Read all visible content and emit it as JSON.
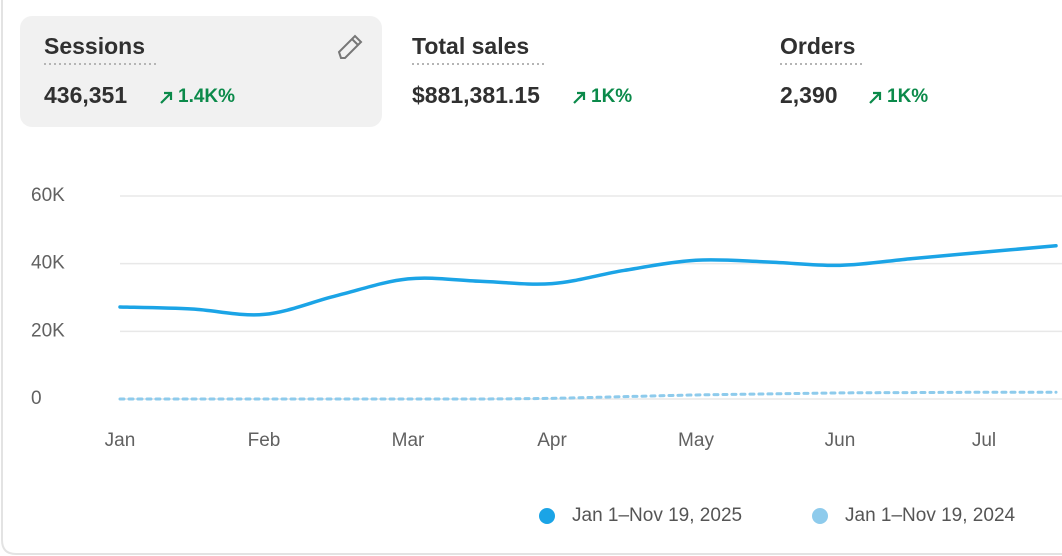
{
  "metrics": [
    {
      "label": "Sessions",
      "value": "436,351",
      "change": "1.4K%"
    },
    {
      "label": "Total sales",
      "value": "$881,381.15",
      "change": "1K%"
    },
    {
      "label": "Orders",
      "value": "2,390",
      "change": "1K%"
    }
  ],
  "chart_data": {
    "type": "line",
    "categories": [
      "Jan",
      null,
      "Feb",
      null,
      "Mar",
      null,
      "Apr",
      null,
      "May",
      null,
      "Jun",
      null,
      "Jul",
      null
    ],
    "series": [
      {
        "name": "Jan 1–Nov 19, 2025",
        "color": "#1ba4e6",
        "values": [
          27200,
          26600,
          25000,
          30500,
          35500,
          34800,
          34100,
          38000,
          41000,
          40500,
          39500,
          41500,
          43400,
          45300
        ]
      },
      {
        "name": "Jan 1–Nov 19, 2024",
        "color": "#8ecbec",
        "dashed": true,
        "values": [
          0,
          0,
          0,
          0,
          0,
          0,
          200,
          700,
          1200,
          1500,
          1800,
          1900,
          2000,
          2000
        ]
      }
    ],
    "ylim": [
      0,
      60000
    ],
    "yticks": [
      0,
      {
        "value": 20000,
        "label": "20K"
      },
      {
        "value": 40000,
        "label": "40K"
      },
      {
        "value": 60000,
        "label": "60K"
      }
    ],
    "grid": true
  }
}
